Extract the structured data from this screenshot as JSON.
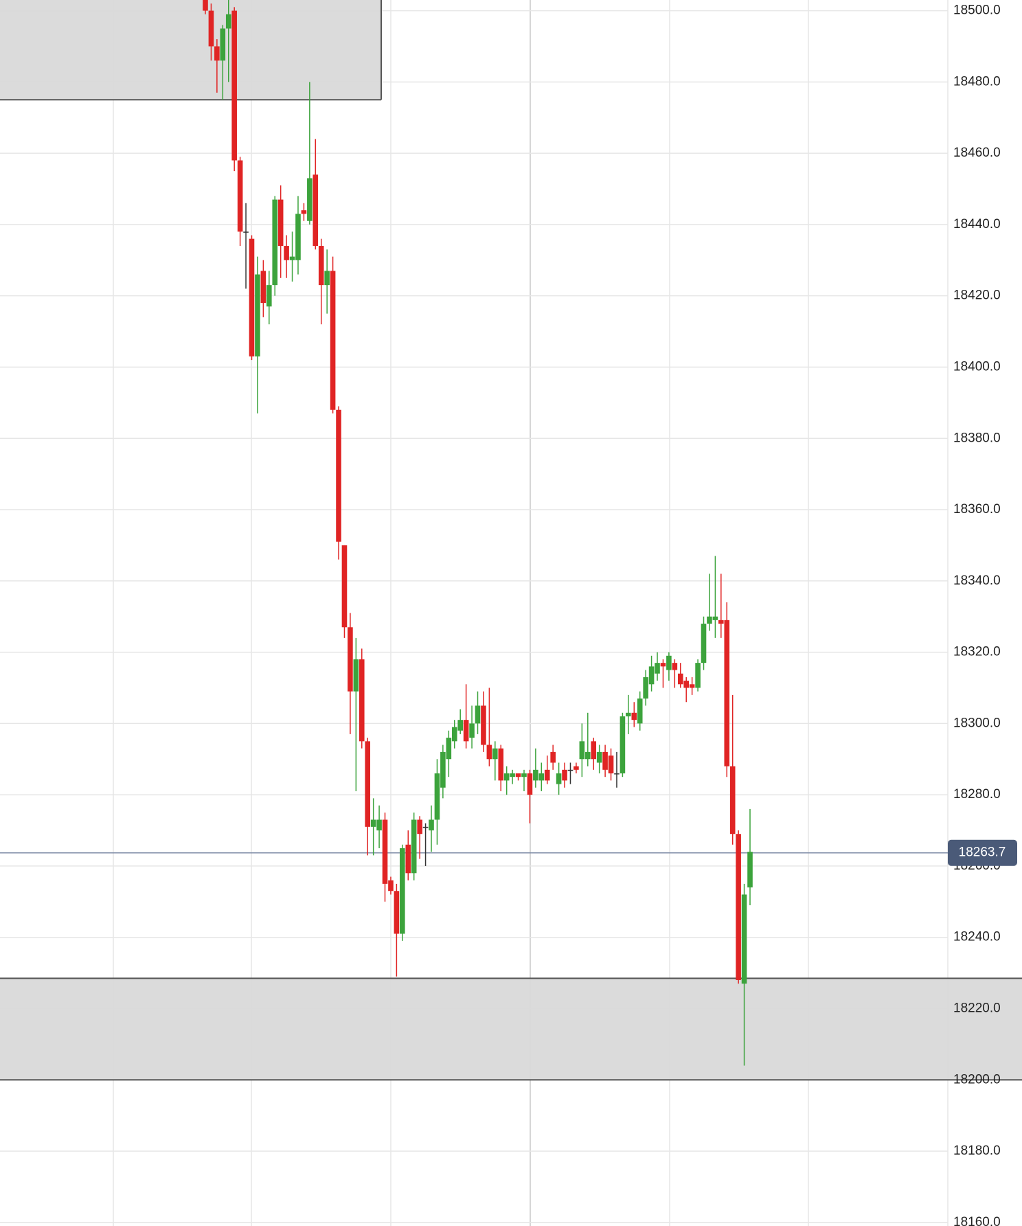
{
  "chart_data": {
    "type": "candlestick",
    "ylim": [
      18159,
      18503
    ],
    "yticks": [
      {
        "value": 18160,
        "label": "18160.0"
      },
      {
        "value": 18180,
        "label": "18180.0"
      },
      {
        "value": 18200,
        "label": "18200.0"
      },
      {
        "value": 18220,
        "label": "18220.0"
      },
      {
        "value": 18240,
        "label": "18240.0"
      },
      {
        "value": 18260,
        "label": "18260.0"
      },
      {
        "value": 18280,
        "label": "18280.0"
      },
      {
        "value": 18300,
        "label": "18300.0"
      },
      {
        "value": 18320,
        "label": "18320.0"
      },
      {
        "value": 18340,
        "label": "18340.0"
      },
      {
        "value": 18360,
        "label": "18360.0"
      },
      {
        "value": 18380,
        "label": "18380.0"
      },
      {
        "value": 18400,
        "label": "18400.0"
      },
      {
        "value": 18420,
        "label": "18420.0"
      },
      {
        "value": 18440,
        "label": "18440.0"
      },
      {
        "value": 18460,
        "label": "18460.0"
      },
      {
        "value": 18480,
        "label": "18480.0"
      },
      {
        "value": 18500,
        "label": "18500.0"
      }
    ],
    "grid": true,
    "up_color": "#3ca33c",
    "down_color": "#e02424",
    "flat_color": "#333333",
    "last_price": 18263.7,
    "zones": [
      {
        "low": 18475,
        "high": 18503
      },
      {
        "low": 18200,
        "high": 18228.5
      }
    ],
    "open": [
      18503,
      18500,
      18490,
      18486,
      18495,
      18500,
      18458,
      18438,
      18436,
      18403,
      18427,
      18417,
      18423,
      18447,
      18434,
      18430,
      18430,
      18444,
      18441,
      18454,
      18434,
      18423,
      18427,
      18388,
      18350,
      18327,
      18309,
      18318,
      18295,
      18271,
      18270,
      18273,
      18256,
      18253,
      18241,
      18266,
      18258,
      18273,
      18271,
      18270,
      18273,
      18282,
      18290,
      18295,
      18298,
      18301,
      18296,
      18300,
      18305,
      18294,
      18290,
      18293,
      18284,
      18285,
      18286,
      18285,
      18286,
      18284,
      18284,
      18287,
      18292,
      18283,
      18287,
      18287,
      18288,
      18290,
      18290,
      18295,
      18289,
      18292,
      18291,
      18286,
      18286,
      18302,
      18303,
      18300,
      18307,
      18311,
      18314,
      18317,
      18315,
      18317,
      18314,
      18312,
      18311,
      18310,
      18317,
      18328,
      18329,
      18329,
      18329,
      18288,
      18269,
      18227,
      18254
    ],
    "high": [
      18503,
      18502,
      18492,
      18496,
      18503,
      18501,
      18459,
      18446,
      18437,
      18431,
      18430,
      18427,
      18448,
      18451,
      18437,
      18438,
      18448,
      18446,
      18480,
      18464,
      18436,
      18433,
      18431,
      18389,
      18350,
      18331,
      18324,
      18321,
      18296,
      18279,
      18277,
      18275,
      18257,
      18255,
      18266,
      18270,
      18275,
      18274,
      18272,
      18277,
      18290,
      18294,
      18298,
      18301,
      18304,
      18311,
      18305,
      18309,
      18309,
      18310,
      18295,
      18294,
      18288,
      18287,
      18286,
      18287,
      18287,
      18293,
      18289,
      18291,
      18294,
      18289,
      18289,
      18289,
      18289,
      18300,
      18303,
      18296,
      18294,
      18294,
      18293,
      18292,
      18303,
      18308,
      18306,
      18309,
      18315,
      18319,
      18320,
      18318,
      18320,
      18318,
      18317,
      18313,
      18313,
      18318,
      18330,
      18342,
      18347,
      18342,
      18334,
      18308,
      18270,
      18255,
      18276
    ],
    "low": [
      18499,
      18486,
      18477,
      18475,
      18480,
      18455,
      18434,
      18422,
      18402,
      18387,
      18414,
      18412,
      18420,
      18425,
      18425,
      18424,
      18426,
      18441,
      18440,
      18433,
      18412,
      18415,
      18387,
      18346,
      18324,
      18297,
      18281,
      18293,
      18263,
      18263,
      18265,
      18250,
      18252,
      18229,
      18239,
      18256,
      18256,
      18262,
      18260,
      18264,
      18266,
      18279,
      18285,
      18293,
      18297,
      18293,
      18293,
      18297,
      18292,
      18288,
      18284,
      18281,
      18280,
      18283,
      18284,
      18281,
      18272,
      18282,
      18281,
      18283,
      18287,
      18280,
      18282,
      18283,
      18286,
      18285,
      18288,
      18287,
      18286,
      18285,
      18284,
      18282,
      18285,
      18297,
      18299,
      18298,
      18305,
      18309,
      18312,
      18310,
      18312,
      18310,
      18310,
      18306,
      18308,
      18309,
      18315,
      18326,
      18324,
      18324,
      18285,
      18266,
      18227,
      18204,
      18249
    ],
    "close": [
      18500,
      18490,
      18486,
      18495,
      18499,
      18458,
      18438,
      18438,
      18403,
      18426,
      18418,
      18423,
      18447,
      18434,
      18430,
      18431,
      18443,
      18443,
      18453,
      18434,
      18423,
      18427,
      18388,
      18351,
      18327,
      18309,
      18318,
      18295,
      18271,
      18273,
      18273,
      18255,
      18253,
      18241,
      18265,
      18258,
      18273,
      18269,
      18271,
      18273,
      18286,
      18292,
      18296,
      18299,
      18301,
      18295,
      18300,
      18305,
      18294,
      18290,
      18293,
      18284,
      18286,
      18286,
      18285,
      18286,
      18280,
      18287,
      18286,
      18284,
      18289,
      18286,
      18284,
      18287,
      18287,
      18295,
      18292,
      18290,
      18292,
      18287,
      18286,
      18286,
      18302,
      18303,
      18301,
      18307,
      18313,
      18316,
      18317,
      18316,
      18319,
      18315,
      18311,
      18310,
      18310,
      18317,
      18328,
      18330,
      18330,
      18328,
      18288,
      18269,
      18228,
      18252,
      18264
    ]
  }
}
